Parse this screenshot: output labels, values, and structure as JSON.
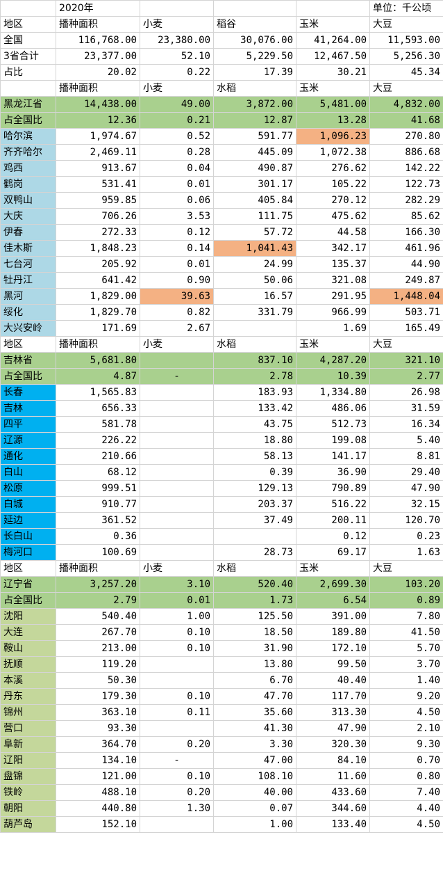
{
  "colors": {
    "heilongjiang_city": "#add8e6",
    "jilin_city": "#00b0f0",
    "liaoning_city": "#c4d79b",
    "province_row": "#a9d08e",
    "highlight": "#f4b183"
  },
  "top": {
    "year": "2020年",
    "unit": "单位：千公顷"
  },
  "rows": [
    {
      "cells": [
        "地区",
        "播种面积",
        "小麦",
        "稻谷",
        "玉米",
        "大豆"
      ],
      "kind": "hdr"
    },
    {
      "cells": [
        "全国",
        "116,768.00",
        "23,380.00",
        "30,076.00",
        "41,264.00",
        "11,593.00"
      ],
      "kind": "plain"
    },
    {
      "cells": [
        "3省合计",
        "23,377.00",
        "52.10",
        "5,229.50",
        "12,467.50",
        "5,256.30"
      ],
      "kind": "plain"
    },
    {
      "cells": [
        "占比",
        "20.02",
        "0.22",
        "17.39",
        "30.21",
        "45.34"
      ],
      "kind": "plain"
    },
    {
      "cells": [
        "",
        "播种面积",
        "小麦",
        "水稻",
        "玉米",
        "大豆"
      ],
      "kind": "hdr"
    },
    {
      "cells": [
        "黑龙江省",
        "14,438.00",
        "49.00",
        "3,872.00",
        "5,481.00",
        "4,832.00"
      ],
      "kind": "prov"
    },
    {
      "cells": [
        "占全国比",
        "12.36",
        "0.21",
        "12.87",
        "13.28",
        "41.68"
      ],
      "kind": "prov"
    },
    {
      "cells": [
        "哈尔滨",
        "1,974.67",
        "0.52",
        "591.77",
        "1,096.23",
        "270.80"
      ],
      "kind": "hlj",
      "hl": [
        4
      ]
    },
    {
      "cells": [
        "齐齐哈尔",
        "2,469.11",
        "0.28",
        "445.09",
        "1,072.38",
        "886.68"
      ],
      "kind": "hlj"
    },
    {
      "cells": [
        "鸡西",
        "913.67",
        "0.04",
        "490.87",
        "276.62",
        "142.22"
      ],
      "kind": "hlj"
    },
    {
      "cells": [
        "鹤岗",
        "531.41",
        "0.01",
        "301.17",
        "105.22",
        "122.73"
      ],
      "kind": "hlj"
    },
    {
      "cells": [
        "双鸭山",
        "959.85",
        "0.06",
        "405.84",
        "270.12",
        "282.29"
      ],
      "kind": "hlj"
    },
    {
      "cells": [
        "大庆",
        "706.26",
        "3.53",
        "111.75",
        "475.62",
        "85.62"
      ],
      "kind": "hlj"
    },
    {
      "cells": [
        "伊春",
        "272.33",
        "0.12",
        "57.72",
        "44.58",
        "166.30"
      ],
      "kind": "hlj"
    },
    {
      "cells": [
        "佳木斯",
        "1,848.23",
        "0.14",
        "1,041.43",
        "342.17",
        "461.96"
      ],
      "kind": "hlj",
      "hl": [
        3
      ]
    },
    {
      "cells": [
        "七台河",
        "205.92",
        "0.01",
        "24.99",
        "135.37",
        "44.90"
      ],
      "kind": "hlj"
    },
    {
      "cells": [
        "牡丹江",
        "641.42",
        "0.90",
        "50.06",
        "321.08",
        "249.87"
      ],
      "kind": "hlj"
    },
    {
      "cells": [
        "黑河",
        "1,829.00",
        "39.63",
        "16.57",
        "291.95",
        "1,448.04"
      ],
      "kind": "hlj",
      "hl": [
        2,
        5
      ]
    },
    {
      "cells": [
        "绥化",
        "1,829.70",
        "0.82",
        "331.79",
        "966.99",
        "503.71"
      ],
      "kind": "hlj"
    },
    {
      "cells": [
        "大兴安岭",
        "171.69",
        "2.67",
        "",
        "1.69",
        "165.49"
      ],
      "kind": "hlj"
    },
    {
      "cells": [
        "地区",
        "播种面积",
        "小麦",
        "水稻",
        "玉米",
        "大豆"
      ],
      "kind": "hdr"
    },
    {
      "cells": [
        "吉林省",
        "5,681.80",
        "",
        "837.10",
        "4,287.20",
        "321.10"
      ],
      "kind": "prov"
    },
    {
      "cells": [
        "占全国比",
        "4.87",
        "-",
        "2.78",
        "10.39",
        "2.77"
      ],
      "kind": "prov"
    },
    {
      "cells": [
        "长春",
        "1,565.83",
        "",
        "183.93",
        "1,334.80",
        "26.98"
      ],
      "kind": "jl"
    },
    {
      "cells": [
        "吉林",
        "656.33",
        "",
        "133.42",
        "486.06",
        "31.59"
      ],
      "kind": "jl"
    },
    {
      "cells": [
        "四平",
        "581.78",
        "",
        "43.75",
        "512.73",
        "16.34"
      ],
      "kind": "jl"
    },
    {
      "cells": [
        "辽源",
        "226.22",
        "",
        "18.80",
        "199.08",
        "5.40"
      ],
      "kind": "jl"
    },
    {
      "cells": [
        "通化",
        "210.66",
        "",
        "58.13",
        "141.17",
        "8.81"
      ],
      "kind": "jl"
    },
    {
      "cells": [
        "白山",
        "68.12",
        "",
        "0.39",
        "36.90",
        "29.40"
      ],
      "kind": "jl"
    },
    {
      "cells": [
        "松原",
        "999.51",
        "",
        "129.13",
        "790.89",
        "47.90"
      ],
      "kind": "jl"
    },
    {
      "cells": [
        "白城",
        "910.77",
        "",
        "203.37",
        "516.22",
        "32.15"
      ],
      "kind": "jl"
    },
    {
      "cells": [
        "延边",
        "361.52",
        "",
        "37.49",
        "200.11",
        "120.70"
      ],
      "kind": "jl"
    },
    {
      "cells": [
        "长白山",
        "0.36",
        "",
        "",
        "0.12",
        "0.23"
      ],
      "kind": "jl"
    },
    {
      "cells": [
        "梅河口",
        "100.69",
        "",
        "28.73",
        "69.17",
        "1.63"
      ],
      "kind": "jl"
    },
    {
      "cells": [
        "地区",
        "播种面积",
        "小麦",
        "水稻",
        "玉米",
        "大豆"
      ],
      "kind": "hdr"
    },
    {
      "cells": [
        "辽宁省",
        "3,257.20",
        "3.10",
        "520.40",
        "2,699.30",
        "103.20"
      ],
      "kind": "prov"
    },
    {
      "cells": [
        "占全国比",
        "2.79",
        "0.01",
        "1.73",
        "6.54",
        "0.89"
      ],
      "kind": "prov"
    },
    {
      "cells": [
        "沈阳",
        "540.40",
        "1.00",
        "125.50",
        "391.00",
        "7.80"
      ],
      "kind": "ln"
    },
    {
      "cells": [
        "大连",
        "267.70",
        "0.10",
        "18.50",
        "189.80",
        "41.50"
      ],
      "kind": "ln"
    },
    {
      "cells": [
        "鞍山",
        "213.00",
        "0.10",
        "31.90",
        "172.10",
        "5.70"
      ],
      "kind": "ln"
    },
    {
      "cells": [
        "抚顺",
        "119.20",
        "",
        "13.80",
        "99.50",
        "3.70"
      ],
      "kind": "ln"
    },
    {
      "cells": [
        "本溪",
        "50.30",
        "",
        "6.70",
        "40.40",
        "1.40"
      ],
      "kind": "ln"
    },
    {
      "cells": [
        "丹东",
        "179.30",
        "0.10",
        "47.70",
        "117.70",
        "9.20"
      ],
      "kind": "ln"
    },
    {
      "cells": [
        "锦州",
        "363.10",
        "0.11",
        "35.60",
        "313.30",
        "4.50"
      ],
      "kind": "ln"
    },
    {
      "cells": [
        "营口",
        "93.30",
        "",
        "41.30",
        "47.90",
        "2.10"
      ],
      "kind": "ln"
    },
    {
      "cells": [
        "阜新",
        "364.70",
        "0.20",
        "3.30",
        "320.30",
        "9.30"
      ],
      "kind": "ln"
    },
    {
      "cells": [
        "辽阳",
        "134.10",
        "-",
        "47.00",
        "84.10",
        "0.70"
      ],
      "kind": "ln"
    },
    {
      "cells": [
        "盘锦",
        "121.00",
        "0.10",
        "108.10",
        "11.60",
        "0.80"
      ],
      "kind": "ln"
    },
    {
      "cells": [
        "铁岭",
        "488.10",
        "0.20",
        "40.00",
        "433.60",
        "7.40"
      ],
      "kind": "ln"
    },
    {
      "cells": [
        "朝阳",
        "440.80",
        "1.30",
        "0.07",
        "344.60",
        "4.40"
      ],
      "kind": "ln"
    },
    {
      "cells": [
        "葫芦岛",
        "152.10",
        "",
        "1.00",
        "133.40",
        "4.50"
      ],
      "kind": "ln"
    }
  ]
}
